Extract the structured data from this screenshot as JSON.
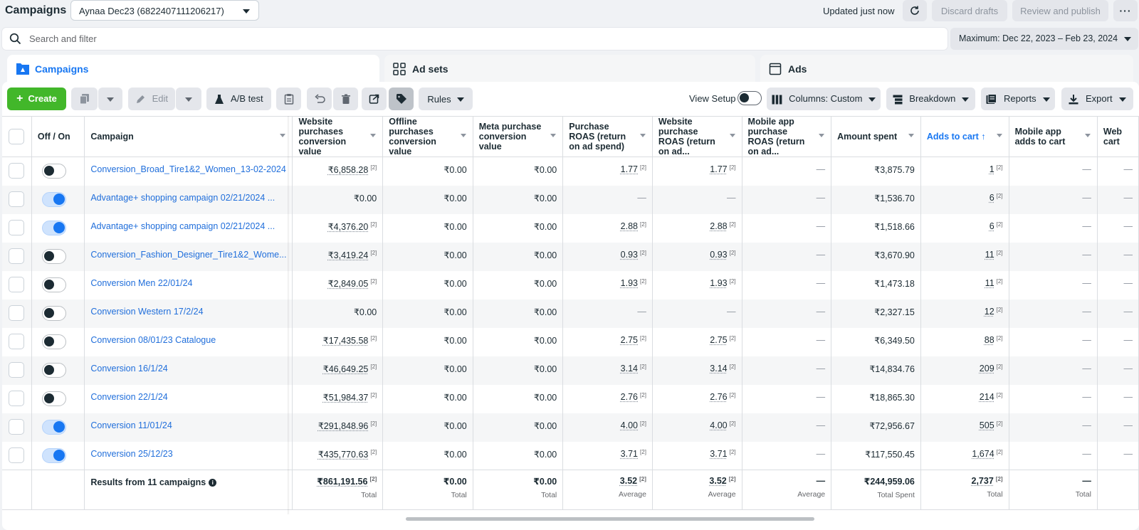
{
  "header": {
    "title": "Campaigns",
    "account": "Aynaa Dec23 (6822407111206217)",
    "updated": "Updated just now",
    "discard_label": "Discard drafts",
    "publish_label": "Review and publish",
    "more_label": "···"
  },
  "search": {
    "placeholder": "Search and filter"
  },
  "date_range": "Maximum: Dec 22, 2023 – Feb 23, 2024",
  "level_tabs": [
    {
      "label": "Campaigns",
      "icon": "campaign-flag-icon",
      "active": true
    },
    {
      "label": "Ad sets",
      "icon": "ad-sets-grid-icon",
      "active": false
    },
    {
      "label": "Ads",
      "icon": "ad-window-icon",
      "active": false
    }
  ],
  "toolbar": {
    "create_label": "Create",
    "edit_label": "Edit",
    "ab_test_label": "A/B test",
    "rules_label": "Rules",
    "view_setup_label": "View Setup",
    "columns_label": "Columns: Custom",
    "breakdown_label": "Breakdown",
    "reports_label": "Reports",
    "export_label": "Export"
  },
  "columns": [
    {
      "key": "onoff",
      "label": "Off / On"
    },
    {
      "key": "campaign",
      "label": "Campaign"
    },
    {
      "key": "web_conv",
      "label": "Website purchases conversion value"
    },
    {
      "key": "off_conv",
      "label": "Offline purchases conversion value"
    },
    {
      "key": "meta_conv",
      "label": "Meta purchase conversion value"
    },
    {
      "key": "roas",
      "label": "Purchase ROAS (return on ad spend)"
    },
    {
      "key": "web_roas",
      "label": "Website purchase ROAS (return on ad..."
    },
    {
      "key": "mob_roas",
      "label": "Mobile app purchase ROAS (return on ad..."
    },
    {
      "key": "spent",
      "label": "Amount spent"
    },
    {
      "key": "atc",
      "label": "Adds to cart ↑"
    },
    {
      "key": "mob_atc",
      "label": "Mobile app adds to cart"
    },
    {
      "key": "web_atc",
      "label": "Web cart"
    }
  ],
  "rows": [
    {
      "on": false,
      "name": "Conversion_Broad_Tire1&2_Women_13-02-2024",
      "web_conv": "₹6,858.28",
      "off_conv": "₹0.00",
      "meta_conv": "₹0.00",
      "roas": "1.77",
      "web_roas": "1.77",
      "mob_roas": "—",
      "spent": "₹3,875.79",
      "atc": "1",
      "mob_atc": "—",
      "web_atc": "—"
    },
    {
      "on": true,
      "name": "Advantage+ shopping campaign 02/21/2024 ...",
      "web_conv": "₹0.00",
      "off_conv": "₹0.00",
      "meta_conv": "₹0.00",
      "roas": "—",
      "web_roas": "—",
      "mob_roas": "—",
      "spent": "₹1,536.70",
      "atc": "6",
      "mob_atc": "—",
      "web_atc": "—"
    },
    {
      "on": true,
      "name": "Advantage+ shopping campaign 02/21/2024 ...",
      "web_conv": "₹4,376.20",
      "off_conv": "₹0.00",
      "meta_conv": "₹0.00",
      "roas": "2.88",
      "web_roas": "2.88",
      "mob_roas": "—",
      "spent": "₹1,518.66",
      "atc": "6",
      "mob_atc": "—",
      "web_atc": "—"
    },
    {
      "on": false,
      "name": "Conversion_Fashion_Designer_Tire1&2_Wome...",
      "web_conv": "₹3,419.24",
      "off_conv": "₹0.00",
      "meta_conv": "₹0.00",
      "roas": "0.93",
      "web_roas": "0.93",
      "mob_roas": "—",
      "spent": "₹3,670.90",
      "atc": "11",
      "mob_atc": "—",
      "web_atc": "—"
    },
    {
      "on": false,
      "name": "Conversion Men 22/01/24",
      "web_conv": "₹2,849.05",
      "off_conv": "₹0.00",
      "meta_conv": "₹0.00",
      "roas": "1.93",
      "web_roas": "1.93",
      "mob_roas": "—",
      "spent": "₹1,473.18",
      "atc": "11",
      "mob_atc": "—",
      "web_atc": "—"
    },
    {
      "on": false,
      "name": "Conversion Western 17/2/24",
      "web_conv": "₹0.00",
      "off_conv": "₹0.00",
      "meta_conv": "₹0.00",
      "roas": "—",
      "web_roas": "—",
      "mob_roas": "—",
      "spent": "₹2,327.15",
      "atc": "12",
      "mob_atc": "—",
      "web_atc": "—"
    },
    {
      "on": false,
      "name": "Conversion 08/01/23 Catalogue",
      "web_conv": "₹17,435.58",
      "off_conv": "₹0.00",
      "meta_conv": "₹0.00",
      "roas": "2.75",
      "web_roas": "2.75",
      "mob_roas": "—",
      "spent": "₹6,349.50",
      "atc": "88",
      "mob_atc": "—",
      "web_atc": "—"
    },
    {
      "on": false,
      "name": "Conversion 16/1/24",
      "web_conv": "₹46,649.25",
      "off_conv": "₹0.00",
      "meta_conv": "₹0.00",
      "roas": "3.14",
      "web_roas": "3.14",
      "mob_roas": "—",
      "spent": "₹14,834.76",
      "atc": "209",
      "mob_atc": "—",
      "web_atc": "—"
    },
    {
      "on": false,
      "name": "Conversion 22/1/24",
      "web_conv": "₹51,984.37",
      "off_conv": "₹0.00",
      "meta_conv": "₹0.00",
      "roas": "2.76",
      "web_roas": "2.76",
      "mob_roas": "—",
      "spent": "₹18,865.30",
      "atc": "214",
      "mob_atc": "—",
      "web_atc": "—"
    },
    {
      "on": true,
      "name": "Conversion 11/01/24",
      "web_conv": "₹291,848.96",
      "off_conv": "₹0.00",
      "meta_conv": "₹0.00",
      "roas": "4.00",
      "web_roas": "4.00",
      "mob_roas": "—",
      "spent": "₹72,956.67",
      "atc": "505",
      "mob_atc": "—",
      "web_atc": "—"
    },
    {
      "on": true,
      "name": "Conversion 25/12/23",
      "web_conv": "₹435,770.63",
      "off_conv": "₹0.00",
      "meta_conv": "₹0.00",
      "roas": "3.71",
      "web_roas": "3.71",
      "mob_roas": "—",
      "spent": "₹117,550.45",
      "atc": "1,674",
      "mob_atc": "—",
      "web_atc": "—"
    }
  ],
  "totals": {
    "label": "Results from 11 campaigns",
    "web_conv": "₹861,191.56",
    "web_conv_sub": "Total",
    "off_conv": "₹0.00",
    "off_conv_sub": "Total",
    "meta_conv": "₹0.00",
    "meta_conv_sub": "Total",
    "roas": "3.52",
    "roas_sub": "Average",
    "web_roas": "3.52",
    "web_roas_sub": "Average",
    "mob_roas": "—",
    "mob_roas_sub": "Average",
    "spent": "₹244,959.06",
    "spent_sub": "Total Spent",
    "atc": "2,737",
    "atc_sub": "Total",
    "mob_atc": "—",
    "mob_atc_sub": "Total"
  },
  "footnote_mark": "[2]"
}
